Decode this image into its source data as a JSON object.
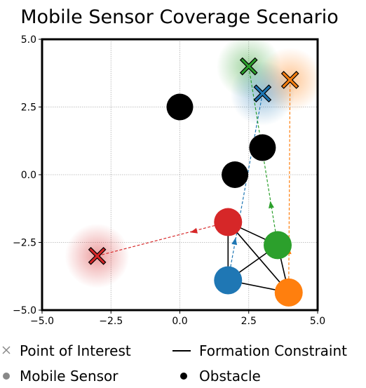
{
  "chart_data": {
    "type": "scatter",
    "title": "Mobile Sensor Coverage Scenario",
    "xlabel": "",
    "ylabel": "",
    "xlim": [
      -5.0,
      5.0
    ],
    "ylim": [
      -5.0,
      5.0
    ],
    "x_ticks": [
      "−5.0",
      "−2.5",
      "0.0",
      "2.5",
      "5.0"
    ],
    "y_ticks": [
      "−5.0",
      "−2.5",
      "0.0",
      "2.5",
      "5.0"
    ],
    "grid": true,
    "legend_placement": "below",
    "legend": [
      {
        "label": "Point of Interest",
        "marker": "x"
      },
      {
        "label": "Formation Constraint",
        "marker": "line"
      },
      {
        "label": "Mobile Sensor",
        "marker": "gray-dot"
      },
      {
        "label": "Obstacle",
        "marker": "black-dot"
      }
    ],
    "colors": {
      "blue": "#1f77b4",
      "orange": "#ff7f0e",
      "green": "#2ca02c",
      "red": "#d62728",
      "obstacle": "#000000",
      "grid": "#b0b0b0"
    },
    "points_of_interest": [
      {
        "color": "green",
        "x": 2.5,
        "y": 4.0
      },
      {
        "color": "orange",
        "x": 4.0,
        "y": 3.5
      },
      {
        "color": "blue",
        "x": 3.0,
        "y": 3.0
      },
      {
        "color": "red",
        "x": -3.0,
        "y": -3.0
      }
    ],
    "sensors": [
      {
        "color": "red",
        "x": 1.75,
        "y": -1.75
      },
      {
        "color": "green",
        "x": 3.55,
        "y": -2.6
      },
      {
        "color": "blue",
        "x": 1.75,
        "y": -3.9
      },
      {
        "color": "orange",
        "x": 3.95,
        "y": -4.35
      }
    ],
    "obstacles": [
      {
        "x": 0.0,
        "y": 2.5
      },
      {
        "x": 3.0,
        "y": 1.0
      },
      {
        "x": 2.0,
        "y": 0.0
      }
    ],
    "formation_edges": [
      [
        "red",
        "green"
      ],
      [
        "red",
        "blue"
      ],
      [
        "red",
        "orange"
      ],
      [
        "green",
        "blue"
      ],
      [
        "green",
        "orange"
      ],
      [
        "blue",
        "orange"
      ]
    ],
    "paths": [
      {
        "color": "red",
        "from": [
          1.75,
          -1.75
        ],
        "to": [
          -3.0,
          -3.0
        ],
        "arrow_at": [
          0.5,
          -2.1
        ]
      },
      {
        "color": "blue",
        "from": [
          1.75,
          -3.9
        ],
        "to": [
          3.0,
          3.0
        ],
        "arrow_at": [
          2.0,
          -2.45
        ]
      },
      {
        "color": "green",
        "from": [
          3.55,
          -2.6
        ],
        "to": [
          2.5,
          4.0
        ],
        "arrow_at": [
          3.3,
          -1.1
        ]
      },
      {
        "color": "orange",
        "from": [
          3.95,
          -4.35
        ],
        "to": [
          4.0,
          3.5
        ],
        "arrow_at": [
          3.95,
          -2.8
        ]
      }
    ]
  }
}
